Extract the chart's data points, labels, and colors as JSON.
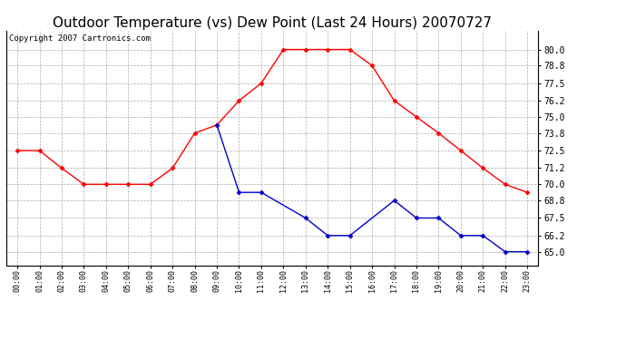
{
  "title": "Outdoor Temperature (vs) Dew Point (Last 24 Hours) 20070727",
  "copyright_text": "Copyright 2007 Cartronics.com",
  "hours": [
    "00:00",
    "01:00",
    "02:00",
    "03:00",
    "04:00",
    "05:00",
    "06:00",
    "07:00",
    "08:00",
    "09:00",
    "10:00",
    "11:00",
    "12:00",
    "13:00",
    "14:00",
    "15:00",
    "16:00",
    "17:00",
    "18:00",
    "19:00",
    "20:00",
    "21:00",
    "22:00",
    "23:00"
  ],
  "temp": [
    72.5,
    72.5,
    71.2,
    70.0,
    70.0,
    70.0,
    70.0,
    71.2,
    73.8,
    74.4,
    76.2,
    77.5,
    80.0,
    80.0,
    80.0,
    80.0,
    78.8,
    76.2,
    75.0,
    73.8,
    72.5,
    71.2,
    70.0,
    69.4
  ],
  "dew": [
    null,
    null,
    null,
    null,
    null,
    null,
    null,
    null,
    null,
    74.4,
    69.4,
    69.4,
    null,
    67.5,
    66.2,
    66.2,
    null,
    68.8,
    67.5,
    67.5,
    66.2,
    66.2,
    65.0,
    65.0
  ],
  "temp_color": "#ff0000",
  "dew_color": "#0000cc",
  "bg_color": "#ffffff",
  "plot_bg_color": "#ffffff",
  "grid_color": "#aaaaaa",
  "ylim_min": 64.0,
  "ylim_max": 81.4,
  "yticks": [
    65.0,
    66.2,
    67.5,
    68.8,
    70.0,
    71.2,
    72.5,
    73.8,
    75.0,
    76.2,
    77.5,
    78.8,
    80.0
  ],
  "title_fontsize": 11,
  "copyright_fontsize": 6.5
}
